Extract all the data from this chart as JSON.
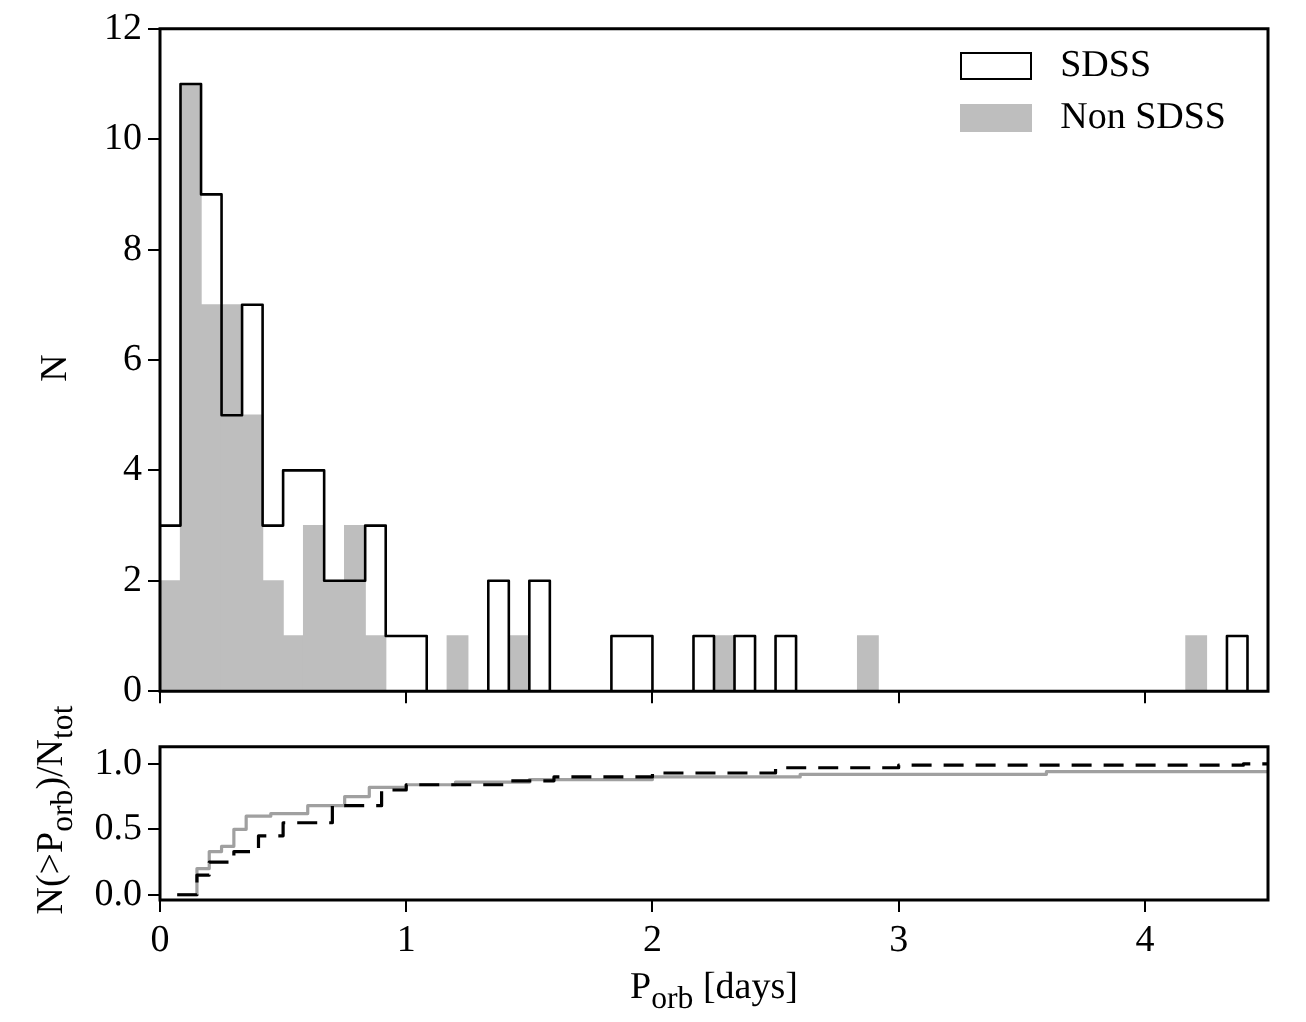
{
  "chart_data": [
    {
      "type": "histogram",
      "ylabel": "N",
      "legend": "top right",
      "tick_labels": "y",
      "bins": [
        0,
        0.0833,
        0.1667,
        0.25,
        0.3333,
        0.4167,
        0.5,
        0.5833,
        0.6667,
        0.75,
        0.8333,
        0.9167,
        1,
        1.0833,
        1.1667,
        1.25,
        1.3333,
        1.4167,
        1.5,
        1.5833,
        1.6667,
        1.75,
        1.8333,
        1.9167,
        2,
        2.0833,
        2.1667,
        2.25,
        2.3333,
        2.4167,
        2.5,
        2.5833,
        2.6667,
        2.75,
        2.8333,
        2.9167,
        3,
        3.0833,
        3.1667,
        3.25,
        3.3333,
        3.4167,
        3.5,
        3.5833,
        3.6667,
        3.75,
        3.8333,
        3.9167,
        4,
        4.0833,
        4.1667,
        4.25,
        4.3333,
        4.4167,
        4.5
      ],
      "series": [
        {
          "name": "SDSS",
          "type": "step",
          "color": "#000000",
          "x": [
            0,
            0.0833,
            0.1667,
            0.25,
            0.3333,
            0.4167,
            0.5,
            0.5833,
            0.6667,
            0.75,
            0.8333,
            0.9167,
            1,
            1.0833,
            1.1667,
            1.25,
            1.3333,
            1.4167,
            1.5,
            1.5833,
            1.6667,
            1.75,
            1.8333,
            1.9167,
            2,
            2.0833,
            2.1667,
            2.25,
            2.3333,
            2.4167,
            2.5,
            2.5833,
            2.6667,
            2.75,
            2.8333,
            2.9167,
            3,
            3.0833,
            3.1667,
            3.25,
            3.3333,
            3.4167,
            3.5,
            3.5833,
            3.6667,
            3.75,
            3.8333,
            3.9167,
            4,
            4.0833,
            4.1667,
            4.25,
            4.3333,
            4.4167
          ],
          "values": [
            3,
            11,
            9,
            5,
            7,
            3,
            4,
            4,
            2,
            2,
            3,
            1,
            1,
            0,
            0,
            0,
            2,
            0,
            2,
            0,
            0,
            0,
            1,
            1,
            0,
            0,
            1,
            0,
            1,
            0,
            1,
            0,
            0,
            0,
            0,
            0,
            0,
            0,
            0,
            0,
            0,
            0,
            0,
            0,
            0,
            0,
            0,
            0,
            0,
            0,
            0,
            0,
            1,
            0
          ]
        },
        {
          "name": "Non SDSS",
          "color": "#bebebe",
          "values": [
            2,
            11,
            7,
            7,
            5,
            2,
            1,
            3,
            2,
            3,
            1,
            0,
            0,
            0,
            1,
            0,
            0,
            1,
            0,
            0,
            0,
            0,
            0,
            0,
            0,
            0,
            0,
            1,
            0,
            0,
            0,
            0,
            0,
            0,
            1,
            0,
            0,
            0,
            0,
            0,
            0,
            0,
            0,
            0,
            0,
            0,
            0,
            0,
            0,
            0,
            1,
            0,
            0,
            0
          ]
        }
      ],
      "xlim": [
        0,
        4.5
      ],
      "xticks": [
        0,
        1,
        2,
        3,
        4
      ],
      "ylim": [
        0,
        12
      ],
      "yticks": [
        0,
        2,
        4,
        6,
        8,
        10,
        12
      ]
    },
    {
      "type": "step",
      "xlabel": "P$_{orb}$ [days]",
      "ylabel": "N(>P$_{orb}$)/N$_{tot}$",
      "series": [
        {
          "color": "#000000",
          "line_style": "dashed",
          "x": [
            0.07,
            0.15,
            0.2,
            0.3,
            0.4,
            0.5,
            0.7,
            0.9,
            1.0,
            1.4,
            1.6,
            2.0,
            2.5,
            3.0,
            4.4,
            4.5
          ],
          "values": [
            0,
            0.15,
            0.25,
            0.33,
            0.45,
            0.55,
            0.68,
            0.8,
            0.84,
            0.87,
            0.9,
            0.93,
            0.97,
            0.99,
            1.0,
            1.0
          ]
        },
        {
          "color": "#a0a0a0",
          "line_style": "solid",
          "x": [
            0.07,
            0.15,
            0.2,
            0.25,
            0.3,
            0.35,
            0.45,
            0.6,
            0.75,
            0.85,
            1.0,
            1.2,
            1.5,
            2.0,
            2.6,
            3.6,
            4.5
          ],
          "values": [
            0,
            0.2,
            0.33,
            0.37,
            0.5,
            0.6,
            0.62,
            0.68,
            0.75,
            0.82,
            0.84,
            0.86,
            0.88,
            0.9,
            0.92,
            0.94,
            0.94
          ]
        }
      ],
      "xlim": [
        0,
        4.5
      ],
      "xticks": [
        0,
        1,
        2,
        3,
        4
      ],
      "ylim": [
        -0.04,
        1.13
      ],
      "yticks": [
        {
          "value": 0,
          "label": "0.0"
        },
        {
          "value": 0.5,
          "label": "0.5"
        },
        {
          "value": 1,
          "label": "1.0"
        }
      ]
    }
  ]
}
